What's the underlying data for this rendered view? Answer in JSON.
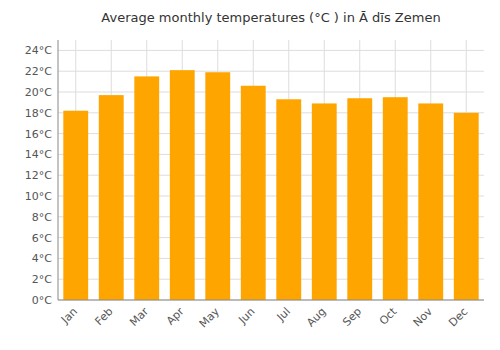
{
  "chart_data": {
    "type": "bar",
    "title": "Average monthly temperatures (°C ) in Ā dīs Zemen",
    "categories": [
      "Jan",
      "Feb",
      "Mar",
      "Apr",
      "May",
      "Jun",
      "Jul",
      "Aug",
      "Sep",
      "Oct",
      "Nov",
      "Dec"
    ],
    "values": [
      18.2,
      19.7,
      21.5,
      22.1,
      21.9,
      20.6,
      19.3,
      18.9,
      19.4,
      19.5,
      18.9,
      18.0
    ],
    "color": "#FFA500",
    "ylim": [
      0,
      25
    ],
    "yticks": [
      {
        "value": 0,
        "label": "0°C"
      },
      {
        "value": 2,
        "label": "2°C"
      },
      {
        "value": 4,
        "label": "4°C"
      },
      {
        "value": 6,
        "label": "6°C"
      },
      {
        "value": 8,
        "label": "8°C"
      },
      {
        "value": 10,
        "label": "10°C"
      },
      {
        "value": 12,
        "label": "12°C"
      },
      {
        "value": 14,
        "label": "14°C"
      },
      {
        "value": 16,
        "label": "16°C"
      },
      {
        "value": 18,
        "label": "18°C"
      },
      {
        "value": 20,
        "label": "20°C"
      },
      {
        "value": 22,
        "label": "22°C"
      },
      {
        "value": 24,
        "label": "24°C"
      }
    ],
    "grid": true
  }
}
